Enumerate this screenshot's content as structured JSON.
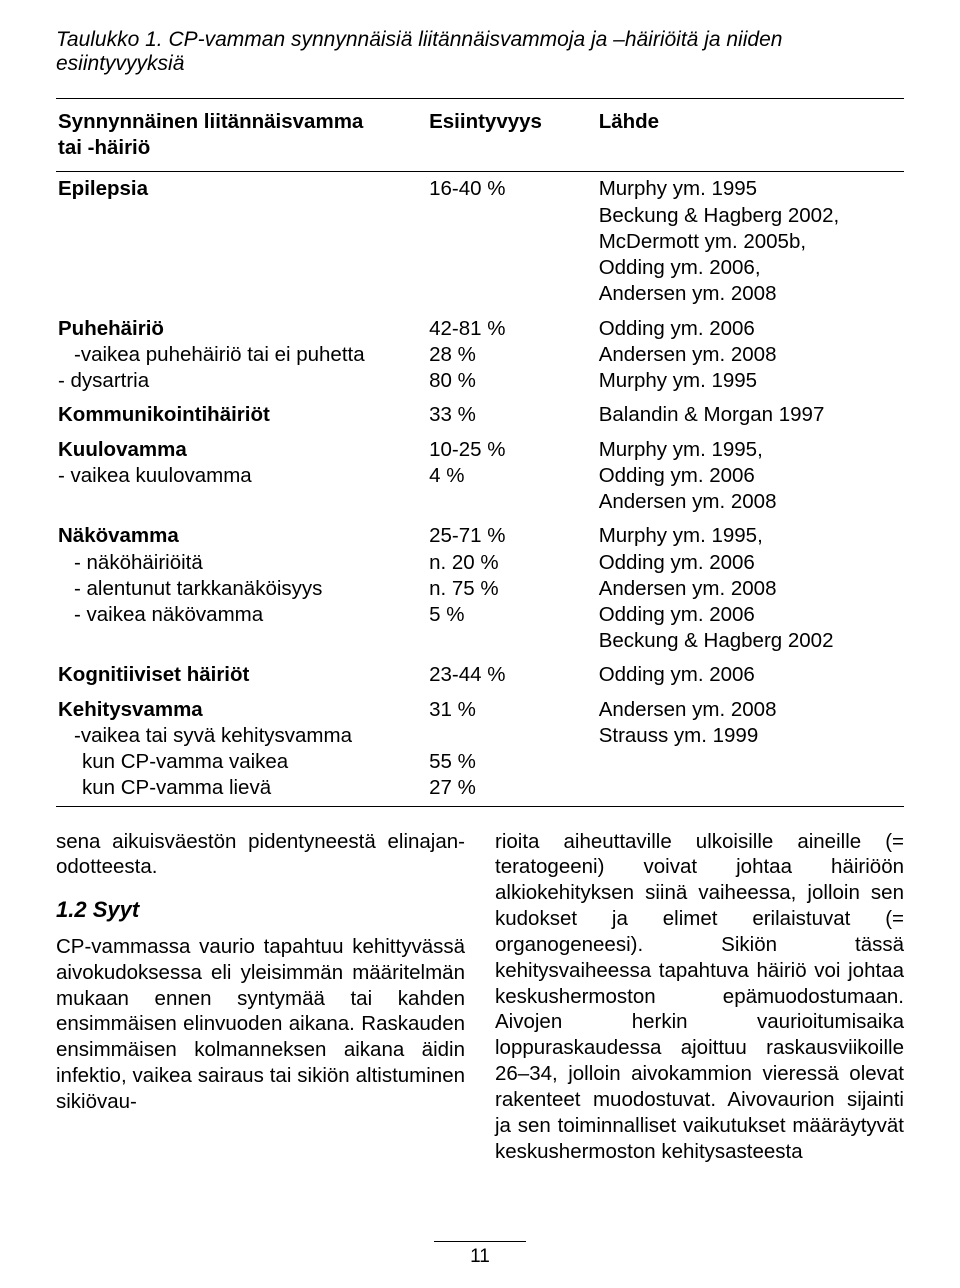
{
  "caption": "Taulukko 1. CP-vamman synnynnäisiä liitännäisvammoja ja –häiriöitä ja niiden esiintyvyyksiä",
  "header": {
    "c1a": "Synnynnäinen liitännäisvamma",
    "c1b": "tai -häiriö",
    "c2": "Esiintyvyys",
    "c3": "Lähde"
  },
  "rows": {
    "r1": {
      "c1": "Epilepsia",
      "c2": "16-40 %",
      "c3a": "Murphy ym. 1995",
      "c3b": "Beckung & Hagberg 2002,",
      "c3c": "McDermott ym. 2005b,",
      "c3d": "Odding ym. 2006,",
      "c3e": "Andersen ym. 2008"
    },
    "r2": {
      "c1a": "Puhehäiriö",
      "c1b": "-vaikea puhehäiriö tai ei puhetta",
      "c1c": "- dysartria",
      "c2a": "42-81 %",
      "c2b": "28 %",
      "c2c": "80 %",
      "c3a": "Odding ym. 2006",
      "c3b": "Andersen ym. 2008",
      "c3c": "Murphy ym. 1995"
    },
    "r3": {
      "c1": "Kommunikointihäiriöt",
      "c2": "33 %",
      "c3": "Balandin & Morgan 1997"
    },
    "r4": {
      "c1a": "Kuulovamma",
      "c1b": "- vaikea kuulovamma",
      "c2a": "10-25 %",
      "c2b": "4 %",
      "c3a": "Murphy ym. 1995,",
      "c3b": "Odding ym. 2006",
      "c3c": "Andersen ym. 2008"
    },
    "r5": {
      "c1a": "Näkövamma",
      "c1b": "- näköhäiriöitä",
      "c1c": "- alentunut tarkkanäköisyys",
      "c1d": "- vaikea näkövamma",
      "c2a": "25-71 %",
      "c2b": "n. 20 %",
      "c2c": "n. 75 %",
      "c2d": "5 %",
      "c3a": "Murphy ym. 1995,",
      "c3b": "Odding ym. 2006",
      "c3c": "Andersen ym. 2008",
      "c3d": "Odding ym. 2006",
      "c3e": "Beckung & Hagberg 2002"
    },
    "r6": {
      "c1": "Kognitiiviset häiriöt",
      "c2": "23-44 %",
      "c3": "Odding ym. 2006"
    },
    "r7": {
      "c1a": "Kehitysvamma",
      "c1b": "-vaikea tai syvä kehitysvamma",
      "c1c": "kun CP-vamma vaikea",
      "c1d": "kun CP-vamma lievä",
      "c2a": "31 %",
      "c2b": "",
      "c2c": "55 %",
      "c2d": "27 %",
      "c3a": "Andersen ym. 2008",
      "c3b": "Strauss ym. 1999"
    }
  },
  "left": {
    "p1a": "sena aikuisväestön pidentyneestä elinajan-",
    "p1b": "odotteesta.",
    "h": "1.2 Syyt",
    "p2": "CP-vammassa vaurio tapahtuu kehittyvässä aivokudoksessa eli yleisimmän määritelmän mukaan ennen syntymää tai kahden ensimmäisen elinvuoden aikana. Raskauden ensimmäisen kolmanneksen aikana äidin infektio, vaikea sairaus tai sikiön altistuminen sikiövau-"
  },
  "right": {
    "p1": "rioita aiheuttaville ulkoisille aineille (= teratogeeni) voivat johtaa häiriöön alkiokehityksen siinä vaiheessa, jolloin sen kudokset ja elimet erilaistuvat (= organogeneesi). Sikiön tässä kehitysvaiheessa tapahtuva häiriö voi johtaa keskushermoston epämuodostumaan. Aivojen herkin vaurioitumisaika loppuraskaudessa ajoittuu raskausviikoille 26–34, jolloin aivokammion vieressä olevat rakenteet muodostuvat. Aivovaurion sijainti ja sen toiminnalliset vaikutukset määräytyvät keskushermoston kehitysasteesta"
  },
  "pagenum": "11"
}
